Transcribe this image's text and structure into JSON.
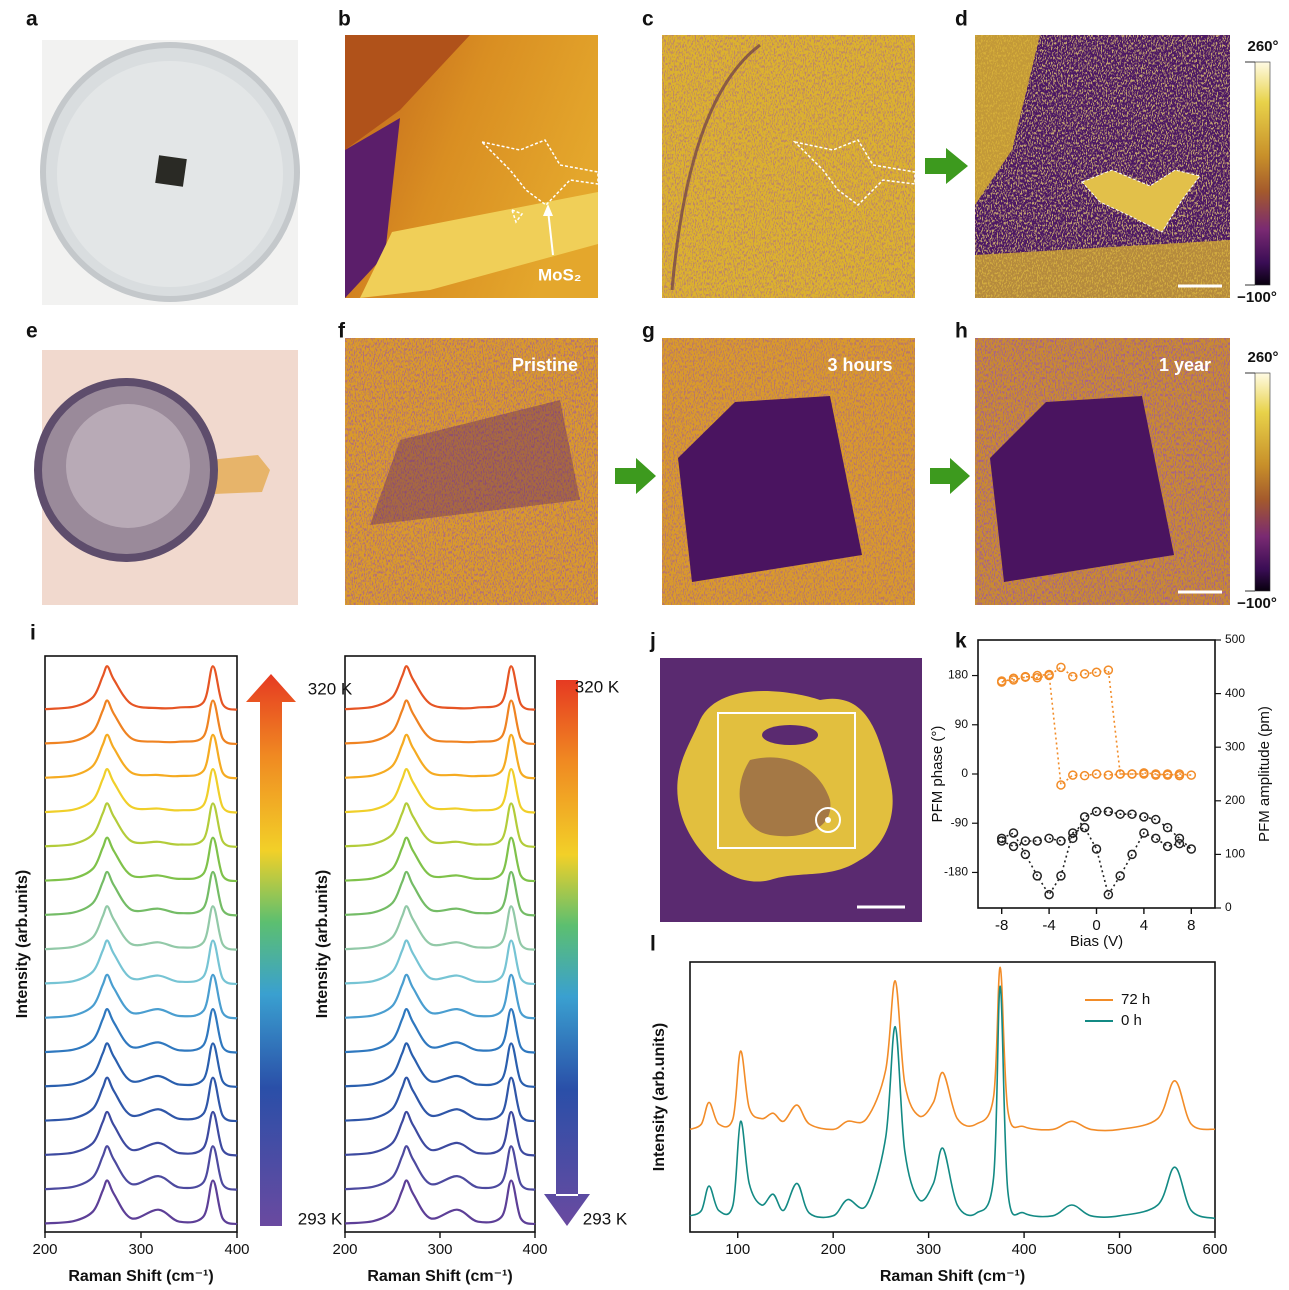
{
  "figure": {
    "panel_labels": [
      "a",
      "b",
      "c",
      "d",
      "e",
      "f",
      "g",
      "h",
      "i",
      "j",
      "k",
      "l"
    ],
    "mos2_label": "MoS₂",
    "states": [
      "Pristine",
      "3 hours",
      "1 year"
    ],
    "colorbars": [
      {
        "lim": [
          -100,
          260
        ],
        "ticks": [
          {
            "value": 260,
            "label": "260°"
          },
          {
            "value": -100,
            "label": "−100°"
          }
        ]
      },
      {
        "lim": [
          -100,
          260
        ],
        "ticks": [
          {
            "value": 260,
            "label": "260°"
          },
          {
            "value": -100,
            "label": "−100°"
          }
        ]
      }
    ]
  },
  "chart_data": [
    {
      "type": "line",
      "xlabel": "Raman Shift (cm⁻¹)",
      "ylabel": "Intensity (arb.units)",
      "temperature_labels": [
        "320 K",
        "293 K"
      ],
      "x": [
        200,
        230,
        250,
        260,
        265,
        272,
        290,
        318,
        340,
        365,
        375,
        385,
        400
      ],
      "xlim": [
        200,
        400
      ],
      "xticks": [
        200,
        300,
        400
      ],
      "ylim": [
        -0.2,
        16.6
      ],
      "series": [
        {
          "color": "#5d3f97",
          "values": [
            0.05,
            0.12,
            0.4,
            1,
            1.3,
            0.9,
            0.2,
            0.45,
            0.1,
            0.25,
            1.3,
            0.2,
            0.03
          ]
        },
        {
          "color": "#4d4a9f",
          "values": [
            1.05,
            1.12,
            1.4,
            2,
            2.3,
            1.9,
            1.2,
            1.43,
            1.1,
            1.25,
            2.3,
            1.2,
            1.03
          ]
        },
        {
          "color": "#3d4aa0",
          "values": [
            2.05,
            2.12,
            2.4,
            3,
            3.3,
            2.9,
            2.2,
            2.4,
            2.1,
            2.25,
            3.3,
            2.2,
            2.03
          ]
        },
        {
          "color": "#2f56a8",
          "values": [
            3.05,
            3.12,
            3.4,
            4,
            4.3,
            3.9,
            3.2,
            3.38,
            3.1,
            3.25,
            4.3,
            3.2,
            3.03
          ]
        },
        {
          "color": "#2a5fae",
          "values": [
            4.05,
            4.12,
            4.4,
            5,
            5.3,
            4.9,
            4.2,
            4.35,
            4.1,
            4.25,
            5.3,
            4.2,
            4.03
          ]
        },
        {
          "color": "#2f78bf",
          "values": [
            5.05,
            5.12,
            5.4,
            6,
            6.3,
            5.9,
            5.2,
            5.33,
            5.1,
            5.25,
            6.3,
            5.2,
            5.03
          ]
        },
        {
          "color": "#4a9ed0",
          "values": [
            6.05,
            6.12,
            6.4,
            7,
            7.3,
            6.9,
            6.2,
            6.3,
            6.1,
            6.25,
            7.3,
            6.2,
            6.03
          ]
        },
        {
          "color": "#76c4d4",
          "values": [
            7.05,
            7.12,
            7.4,
            8,
            8.3,
            7.9,
            7.2,
            7.28,
            7.1,
            7.25,
            8.3,
            7.2,
            7.03
          ]
        },
        {
          "color": "#92c9a8",
          "values": [
            8.05,
            8.12,
            8.4,
            9,
            9.3,
            8.9,
            8.2,
            8.25,
            8.1,
            8.25,
            9.3,
            8.2,
            8.03
          ]
        },
        {
          "color": "#74bc66",
          "values": [
            9.05,
            9.12,
            9.4,
            10,
            10.3,
            9.9,
            9.2,
            9.23,
            9.1,
            9.25,
            10.3,
            9.2,
            9.03
          ]
        },
        {
          "color": "#7fc24a",
          "values": [
            10.05,
            10.12,
            10.4,
            11,
            11.3,
            10.9,
            10.2,
            10.2,
            10.1,
            10.25,
            11.3,
            10.2,
            10.03
          ]
        },
        {
          "color": "#b3cc3a",
          "values": [
            11.05,
            11.12,
            11.4,
            12,
            12.3,
            11.9,
            11.2,
            11.18,
            11.1,
            11.25,
            12.3,
            11.2,
            11.03
          ]
        },
        {
          "color": "#f0cf2a",
          "values": [
            12.05,
            12.12,
            12.4,
            13,
            13.3,
            12.9,
            12.2,
            12.15,
            12.1,
            12.25,
            13.3,
            12.2,
            12.03
          ]
        },
        {
          "color": "#f5ab22",
          "values": [
            13.05,
            13.12,
            13.4,
            14,
            14.3,
            13.9,
            13.2,
            13.13,
            13.1,
            13.25,
            14.3,
            13.2,
            13.03
          ]
        },
        {
          "color": "#ef8322",
          "values": [
            14.05,
            14.12,
            14.4,
            15,
            15.3,
            14.9,
            14.2,
            14.1,
            14.1,
            14.25,
            15.3,
            14.2,
            14.03
          ]
        },
        {
          "color": "#e65524",
          "values": [
            15.05,
            15.12,
            15.4,
            16,
            16.3,
            15.9,
            15.2,
            15.08,
            15.1,
            15.25,
            16.3,
            15.2,
            15.03
          ]
        }
      ]
    },
    {
      "type": "line",
      "xlabel": "Raman Shift (cm⁻¹)",
      "ylabel": "Intensity (arb.units)",
      "temperature_labels": [
        "320 K",
        "293 K"
      ],
      "x": [
        200,
        230,
        250,
        260,
        265,
        272,
        290,
        318,
        340,
        365,
        375,
        385,
        400
      ],
      "xlim": [
        200,
        400
      ],
      "xticks": [
        200,
        300,
        400
      ],
      "ylim": [
        -0.2,
        16.6
      ],
      "series": [
        {
          "color": "#5d3f97",
          "values": [
            0.05,
            0.12,
            0.4,
            1,
            1.3,
            0.9,
            0.2,
            0.45,
            0.1,
            0.25,
            1.3,
            0.2,
            0.03
          ]
        },
        {
          "color": "#4d4a9f",
          "values": [
            1.05,
            1.12,
            1.4,
            2,
            2.3,
            1.9,
            1.2,
            1.43,
            1.1,
            1.25,
            2.3,
            1.2,
            1.03
          ]
        },
        {
          "color": "#3d4aa0",
          "values": [
            2.05,
            2.12,
            2.4,
            3,
            3.3,
            2.9,
            2.2,
            2.4,
            2.1,
            2.25,
            3.3,
            2.2,
            2.03
          ]
        },
        {
          "color": "#2f56a8",
          "values": [
            3.05,
            3.12,
            3.4,
            4,
            4.3,
            3.9,
            3.2,
            3.38,
            3.1,
            3.25,
            4.3,
            3.2,
            3.03
          ]
        },
        {
          "color": "#2a5fae",
          "values": [
            4.05,
            4.12,
            4.4,
            5,
            5.3,
            4.9,
            4.2,
            4.35,
            4.1,
            4.25,
            5.3,
            4.2,
            4.03
          ]
        },
        {
          "color": "#2f78bf",
          "values": [
            5.05,
            5.12,
            5.4,
            6,
            6.3,
            5.9,
            5.2,
            5.33,
            5.1,
            5.25,
            6.3,
            5.2,
            5.03
          ]
        },
        {
          "color": "#4a9ed0",
          "values": [
            6.05,
            6.12,
            6.4,
            7,
            7.3,
            6.9,
            6.2,
            6.3,
            6.1,
            6.25,
            7.3,
            6.2,
            6.03
          ]
        },
        {
          "color": "#76c4d4",
          "values": [
            7.05,
            7.12,
            7.4,
            8,
            8.3,
            7.9,
            7.2,
            7.28,
            7.1,
            7.25,
            8.3,
            7.2,
            7.03
          ]
        },
        {
          "color": "#92c9a8",
          "values": [
            8.05,
            8.12,
            8.4,
            9,
            9.3,
            8.9,
            8.2,
            8.25,
            8.1,
            8.25,
            9.3,
            8.2,
            8.03
          ]
        },
        {
          "color": "#74bc66",
          "values": [
            9.05,
            9.12,
            9.4,
            10,
            10.3,
            9.9,
            9.2,
            9.23,
            9.1,
            9.25,
            10.3,
            9.2,
            9.03
          ]
        },
        {
          "color": "#7fc24a",
          "values": [
            10.05,
            10.12,
            10.4,
            11,
            11.3,
            10.9,
            10.2,
            10.2,
            10.1,
            10.25,
            11.3,
            10.2,
            10.03
          ]
        },
        {
          "color": "#b3cc3a",
          "values": [
            11.05,
            11.12,
            11.4,
            12,
            12.3,
            11.9,
            11.2,
            11.18,
            11.1,
            11.25,
            12.3,
            11.2,
            11.03
          ]
        },
        {
          "color": "#f0cf2a",
          "values": [
            12.05,
            12.12,
            12.4,
            13,
            13.3,
            12.9,
            12.2,
            12.15,
            12.1,
            12.25,
            13.3,
            12.2,
            12.03
          ]
        },
        {
          "color": "#f5ab22",
          "values": [
            13.05,
            13.12,
            13.4,
            14,
            14.3,
            13.9,
            13.2,
            13.13,
            13.1,
            13.25,
            14.3,
            13.2,
            13.03
          ]
        },
        {
          "color": "#ef8322",
          "values": [
            14.05,
            14.12,
            14.4,
            15,
            15.3,
            14.9,
            14.2,
            14.1,
            14.1,
            14.25,
            15.3,
            14.2,
            14.03
          ]
        },
        {
          "color": "#e65524",
          "values": [
            15.05,
            15.12,
            15.4,
            16,
            16.3,
            15.9,
            15.2,
            15.08,
            15.1,
            15.25,
            16.3,
            15.2,
            15.03
          ]
        }
      ]
    },
    {
      "type": "scatter",
      "xlabel": "Bias (V)",
      "ylabel": "PFM phase (°)",
      "y2label": "PFM amplitude (pm)",
      "x": [
        -8,
        -7,
        -6,
        -5,
        -4,
        -3,
        -2,
        -1,
        0,
        1,
        2,
        3,
        4,
        5,
        6,
        7,
        8,
        7,
        6,
        5,
        4,
        3,
        2,
        1,
        0,
        -1,
        -2,
        -3,
        -4,
        -5,
        -6,
        -7,
        -8
      ],
      "xlim": [
        -10,
        10
      ],
      "xticks": [
        -8,
        -4,
        0,
        4,
        8
      ],
      "ylim": [
        -245,
        245
      ],
      "yticks": [
        -180,
        -90,
        0,
        90,
        180
      ],
      "y2lim": [
        0,
        500
      ],
      "y2ticks": [
        0,
        100,
        200,
        300,
        400,
        500
      ],
      "series": [
        {
          "color": "#f28c28",
          "values": [
            168,
            175,
            178,
            176,
            180,
            195,
            178,
            183,
            186,
            190,
            0,
            0,
            0,
            -2,
            0,
            -3,
            -2,
            0,
            -2,
            0,
            2,
            0,
            0,
            -2,
            0,
            -3,
            -2,
            -20,
            182,
            180,
            177,
            172,
            170
          ]
        },
        {
          "color": "#222222",
          "axis": "y2",
          "values": [
            125,
            115,
            125,
            125,
            130,
            125,
            130,
            170,
            180,
            180,
            175,
            175,
            170,
            165,
            150,
            130,
            110,
            120,
            115,
            130,
            140,
            100,
            60,
            25,
            110,
            150,
            140,
            60,
            25,
            60,
            100,
            140,
            130
          ]
        }
      ]
    },
    {
      "type": "line",
      "xlabel": "Raman Shift (cm⁻¹)",
      "ylabel": "Intensity (arb.units)",
      "legend": "upper right",
      "x": [
        50,
        62,
        70,
        80,
        95,
        103,
        112,
        125,
        137,
        148,
        162,
        175,
        200,
        215,
        235,
        255,
        265,
        275,
        290,
        305,
        315,
        330,
        350,
        368,
        375,
        383,
        400,
        430,
        450,
        470,
        500,
        540,
        558,
        575,
        600
      ],
      "xlim": [
        50,
        600
      ],
      "xticks": [
        100,
        200,
        300,
        400,
        500,
        600
      ],
      "ylim": [
        0,
        1
      ],
      "series": [
        {
          "name": "72 h",
          "color": "#f28c28",
          "values": [
            0.38,
            0.4,
            0.48,
            0.4,
            0.42,
            0.67,
            0.46,
            0.42,
            0.44,
            0.41,
            0.47,
            0.4,
            0.38,
            0.41,
            0.42,
            0.6,
            0.93,
            0.55,
            0.43,
            0.48,
            0.59,
            0.42,
            0.4,
            0.5,
            0.98,
            0.45,
            0.39,
            0.38,
            0.41,
            0.38,
            0.38,
            0.42,
            0.56,
            0.4,
            0.38
          ]
        },
        {
          "name": "0 h",
          "color": "#138a84",
          "values": [
            0.06,
            0.08,
            0.17,
            0.08,
            0.1,
            0.41,
            0.18,
            0.1,
            0.14,
            0.08,
            0.18,
            0.07,
            0.06,
            0.12,
            0.1,
            0.35,
            0.76,
            0.3,
            0.12,
            0.18,
            0.31,
            0.1,
            0.07,
            0.2,
            0.91,
            0.15,
            0.07,
            0.06,
            0.1,
            0.06,
            0.06,
            0.1,
            0.24,
            0.08,
            0.05
          ]
        }
      ]
    }
  ]
}
